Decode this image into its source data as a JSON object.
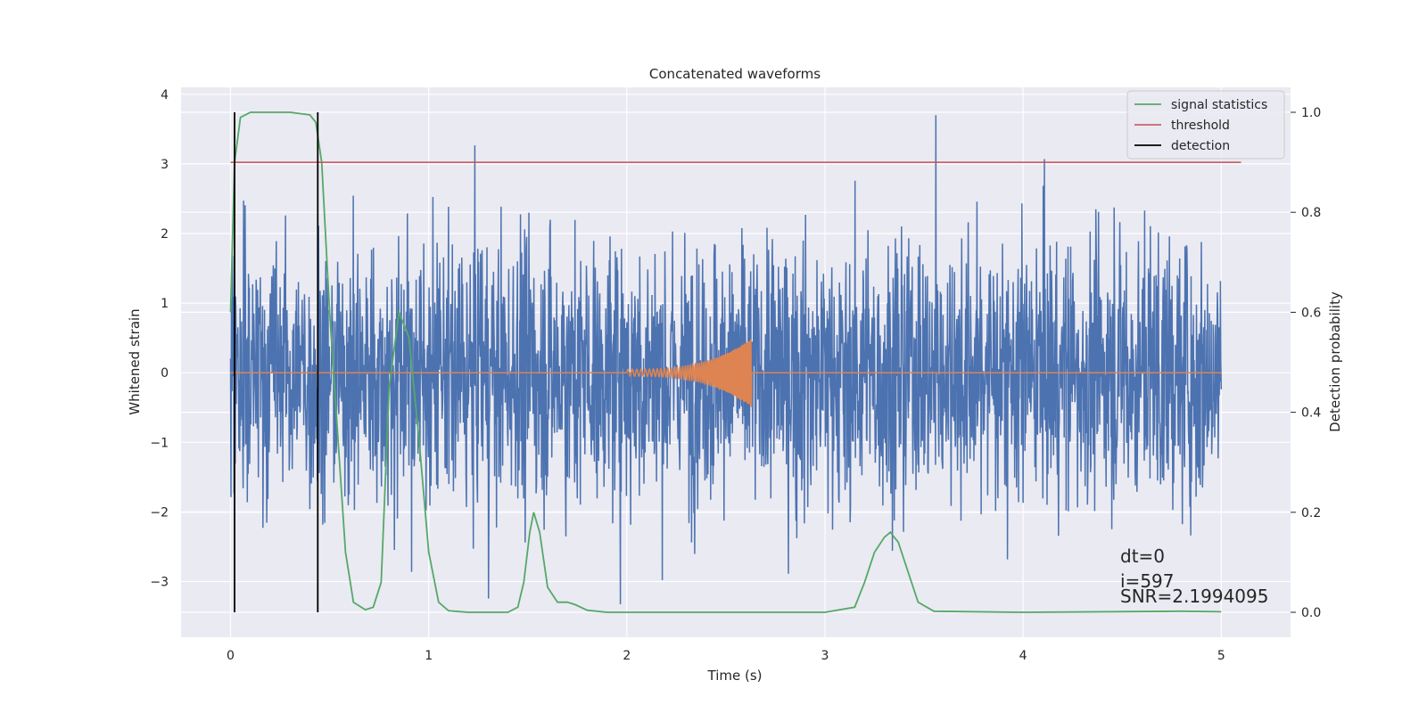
{
  "chart_data": {
    "type": "line",
    "title": "Concatenated waveforms",
    "xlabel": "Time (s)",
    "ylabel": "Whitened strain",
    "y2label": "Detection probability",
    "xlim": [
      -0.25,
      5.35
    ],
    "ylim": [
      -3.8,
      4.1
    ],
    "y2lim": [
      -0.05,
      1.05
    ],
    "xticks": [
      0,
      1,
      2,
      3,
      4,
      5
    ],
    "yticks": [
      -3,
      -2,
      -1,
      0,
      1,
      2,
      3,
      4
    ],
    "y2ticks": [
      0.0,
      0.2,
      0.4,
      0.6,
      0.8,
      1.0
    ],
    "grid": true,
    "legend_position": "top-right",
    "colors": {
      "background": "#eaeaf2",
      "grid": "#ffffff",
      "strain": "#4c72b0",
      "waveform": "#dd8452",
      "signal_statistics": "#55a868",
      "threshold": "#c44e52",
      "detection": "#000000"
    },
    "series": [
      {
        "name": "signal statistics",
        "axis": "right",
        "x": [
          0.0,
          0.02,
          0.05,
          0.1,
          0.2,
          0.3,
          0.4,
          0.43,
          0.46,
          0.5,
          0.55,
          0.58,
          0.62,
          0.68,
          0.72,
          0.76,
          0.8,
          0.85,
          0.9,
          0.95,
          1.0,
          1.05,
          1.1,
          1.2,
          1.4,
          1.45,
          1.48,
          1.51,
          1.53,
          1.56,
          1.6,
          1.65,
          1.7,
          1.74,
          1.8,
          1.9,
          2.0,
          2.5,
          3.0,
          3.15,
          3.2,
          3.25,
          3.3,
          3.33,
          3.37,
          3.42,
          3.47,
          3.55,
          4.0,
          4.8,
          5.0
        ],
        "values": [
          0.6,
          0.9,
          0.99,
          1.0,
          1.0,
          1.0,
          0.995,
          0.98,
          0.9,
          0.6,
          0.3,
          0.12,
          0.02,
          0.005,
          0.01,
          0.06,
          0.45,
          0.6,
          0.55,
          0.35,
          0.12,
          0.02,
          0.003,
          0.0,
          0.0,
          0.01,
          0.06,
          0.16,
          0.2,
          0.16,
          0.05,
          0.02,
          0.02,
          0.015,
          0.004,
          0.0,
          0.0,
          0.0,
          0.0,
          0.01,
          0.06,
          0.12,
          0.15,
          0.16,
          0.14,
          0.08,
          0.02,
          0.002,
          0.0,
          0.002,
          0.001
        ]
      },
      {
        "name": "threshold",
        "axis": "right",
        "x": [
          0.0,
          5.1
        ],
        "values": [
          0.9,
          0.9
        ]
      },
      {
        "name": "detection",
        "axis": "right",
        "x_positions": [
          0.02,
          0.44
        ],
        "y_range": [
          0.0,
          1.0
        ]
      },
      {
        "axis": "left",
        "x_range": [
          0.0,
          5.0
        ],
        "envelope": 1.1,
        "max_peak": 3.7
      },
      {
        "axis": "left",
        "x_range": [
          2.0,
          2.63
        ],
        "amplitude_start": 0.05,
        "amplitude_end": 0.5
      }
    ],
    "legend": [
      "signal statistics",
      "threshold",
      "detection"
    ],
    "annotations": [
      "dt=0",
      "i=597",
      "SNR=2.1994095"
    ]
  }
}
